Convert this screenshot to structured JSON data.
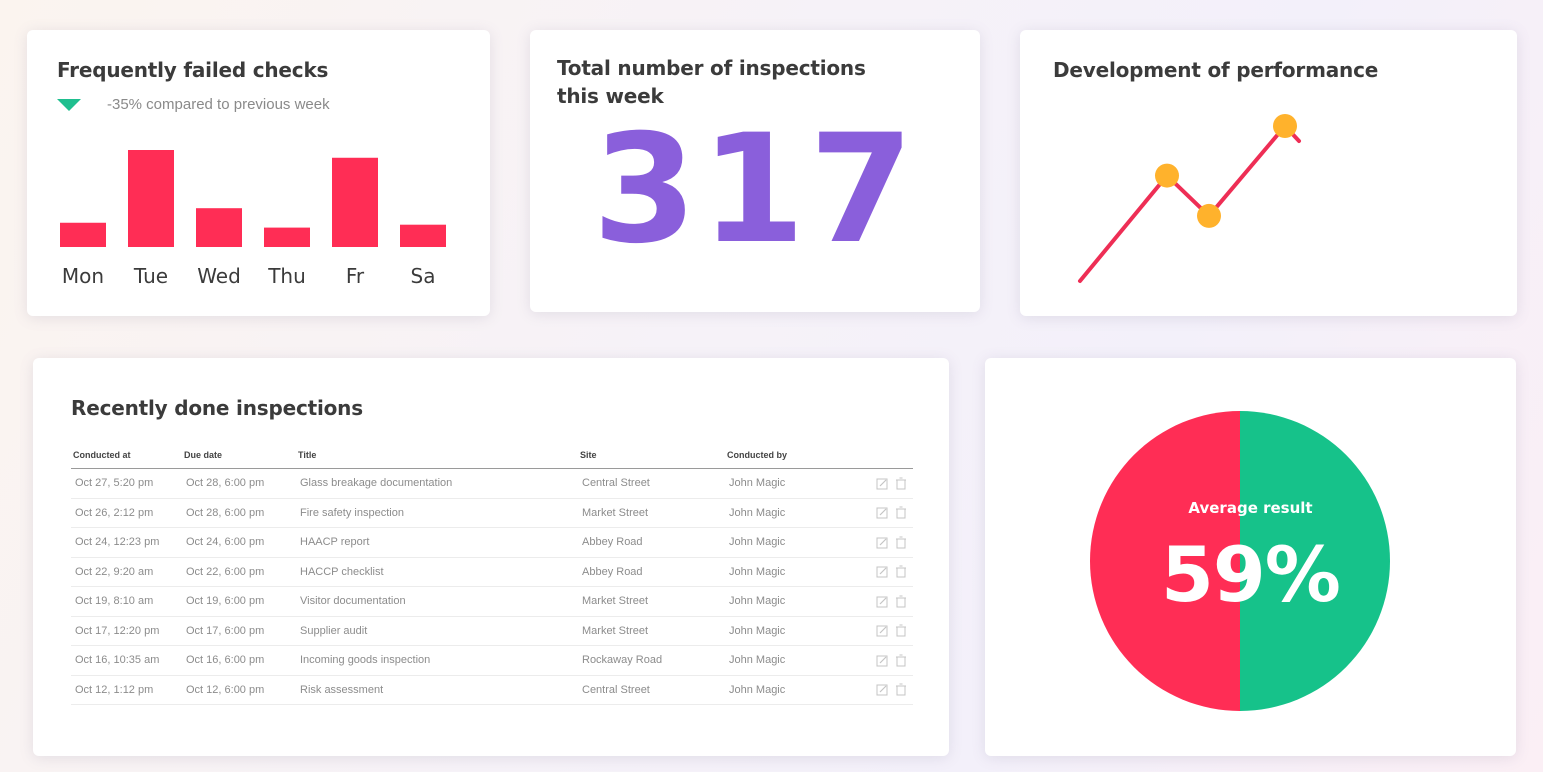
{
  "failed_checks": {
    "title": "Frequently failed checks",
    "trend_text": "-35% compared to previous week",
    "trend_icon": "triangle-down-icon",
    "trend_color": "#1fbf8f",
    "bar_color": "#ff2d55"
  },
  "total_inspections": {
    "title": "Total number of inspections this week",
    "value": "317",
    "color": "#8a5fdb"
  },
  "performance": {
    "title": "Development of performance",
    "line_color": "#ee2e55",
    "point_color": "#ffb22c"
  },
  "recent": {
    "title": "Recently done inspections",
    "columns": [
      "Conducted at",
      "Due date",
      "Title",
      "Site",
      "Conducted by"
    ],
    "rows": [
      [
        "Oct 27, 5:20 pm",
        "Oct 28, 6:00 pm",
        "Glass breakage documentation",
        "Central Street",
        "John Magic"
      ],
      [
        "Oct 26, 2:12 pm",
        "Oct 28, 6:00 pm",
        "Fire safety inspection",
        "Market Street",
        "John Magic"
      ],
      [
        "Oct 24, 12:23 pm",
        "Oct 24, 6:00 pm",
        "HAACP report",
        "Abbey Road",
        "John Magic"
      ],
      [
        "Oct 22, 9:20 am",
        "Oct 22, 6:00 pm",
        "HACCP checklist",
        "Abbey Road",
        "John Magic"
      ],
      [
        "Oct 19, 8:10 am",
        "Oct 19, 6:00 pm",
        "Visitor documentation",
        "Market Street",
        "John Magic"
      ],
      [
        "Oct 17, 12:20 pm",
        "Oct 17, 6:00 pm",
        "Supplier audit",
        "Market Street",
        "John Magic"
      ],
      [
        "Oct 16, 10:35 am",
        "Oct 16, 6:00 pm",
        "Incoming goods inspection",
        "Rockaway Road",
        "John Magic"
      ],
      [
        "Oct 12, 1:12 pm",
        "Oct 12, 6:00 pm",
        "Risk assessment",
        "Central Street",
        "John Magic"
      ]
    ],
    "row_icons": [
      "edit-icon",
      "trash-icon"
    ]
  },
  "average": {
    "label": "Average result",
    "value": "59%",
    "colors": {
      "left": "#ff2d55",
      "right": "#16c28a"
    }
  },
  "chart_data": [
    {
      "type": "bar",
      "categories": [
        "Mon",
        "Tue",
        "Wed",
        "Thu",
        "Fr",
        "Sa"
      ],
      "values": [
        2.5,
        10,
        4,
        2,
        9.2,
        2.3
      ],
      "title": "Frequently failed checks",
      "xlabel": "",
      "ylabel": "",
      "ylim": [
        0,
        10
      ],
      "grid": false
    },
    {
      "type": "line",
      "x": [
        0,
        1,
        2,
        3
      ],
      "y": [
        0,
        6.8,
        4.2,
        10
      ],
      "markers_on": [
        1,
        2,
        3
      ],
      "title": "Development of performance",
      "xlabel": "",
      "ylabel": "",
      "ylim": [
        0,
        10
      ],
      "grid": false
    },
    {
      "type": "pie",
      "slices": [
        {
          "value": 50,
          "color": "#ff2d55"
        },
        {
          "value": 50,
          "color": "#16c28a"
        }
      ],
      "title": "Average result"
    }
  ]
}
